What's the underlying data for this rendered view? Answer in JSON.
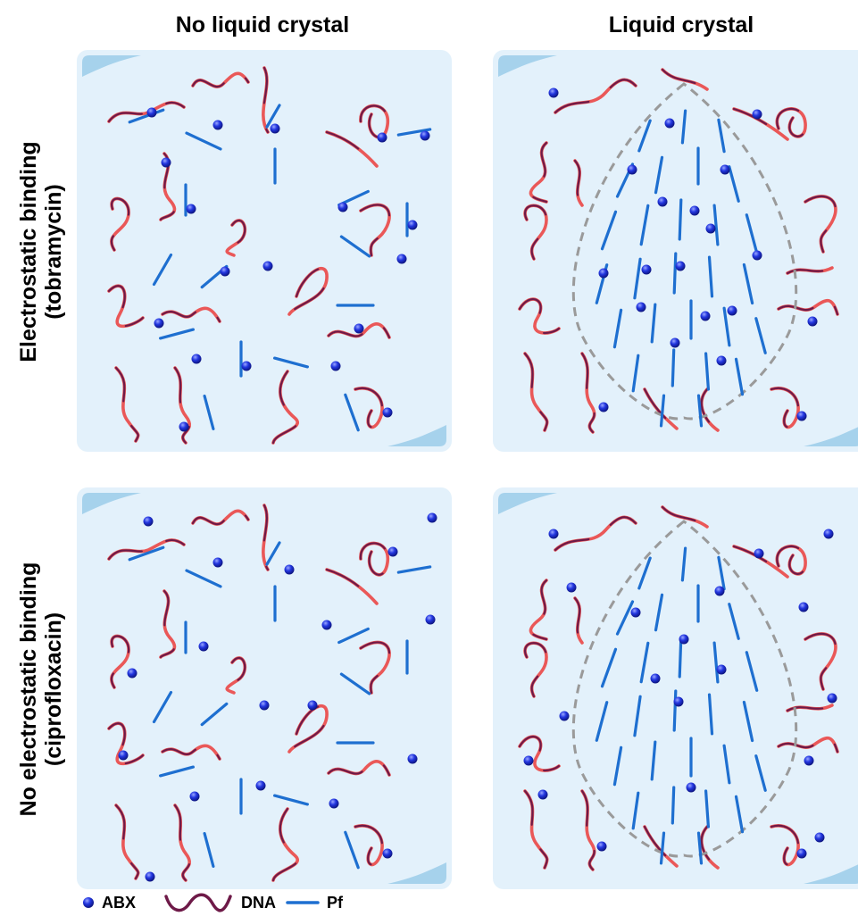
{
  "columns": [
    "No liquid crystal",
    "Liquid crystal"
  ],
  "rows": [
    {
      "line1": "Electrostatic binding",
      "line2": "(tobramycin)"
    },
    {
      "line1": "No electrostatic binding",
      "line2": "(ciprofloxacin)"
    }
  ],
  "legend": {
    "abx": "ABX",
    "dna": "DNA",
    "pf": "Pf"
  },
  "colors": {
    "panel": "#e3f1fb",
    "corner": "#a6d2ec",
    "abx": "#1f2fd6",
    "pf": "#1e6fd0",
    "dna_red": "#ea5858",
    "dna_dark": "#6e1a48",
    "dashed": "#9a9a9a"
  }
}
